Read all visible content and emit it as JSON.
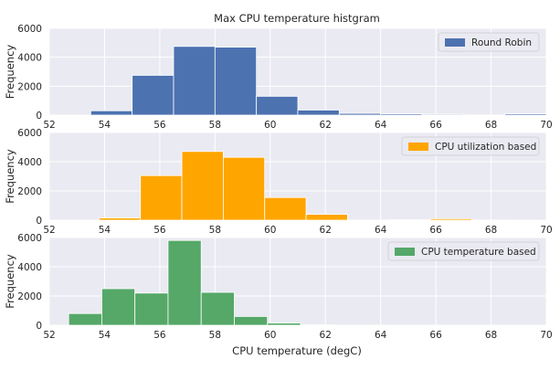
{
  "chart_data": {
    "type": "histogram",
    "title": "Max CPU temperature histgram",
    "xlabel": "CPU temperature (degC)",
    "ylabel": "Frequency",
    "xlim": [
      52,
      70
    ],
    "ylim": [
      0,
      6000
    ],
    "xticks": [
      52,
      54,
      56,
      58,
      60,
      62,
      64,
      66,
      68,
      70
    ],
    "yticks": [
      0,
      2000,
      4000,
      6000
    ],
    "grid": true,
    "legend_position": "top-right",
    "colors": {
      "background": "#eaeaf2",
      "grid": "#ffffff",
      "round_robin": "#4c72b0",
      "cpu_utilization": "#ffa500",
      "cpu_temperature": "#55a868"
    },
    "panels": [
      {
        "name": "Round Robin",
        "color": "#4c72b0",
        "show_title": true,
        "show_xlabel": false,
        "bins": [
          {
            "x0": 53.5,
            "x1": 55.0,
            "count": 300
          },
          {
            "x0": 55.0,
            "x1": 56.5,
            "count": 2750
          },
          {
            "x0": 56.5,
            "x1": 58.0,
            "count": 4750
          },
          {
            "x0": 58.0,
            "x1": 59.5,
            "count": 4700
          },
          {
            "x0": 59.5,
            "x1": 61.0,
            "count": 1300
          },
          {
            "x0": 61.0,
            "x1": 62.5,
            "count": 350
          },
          {
            "x0": 62.5,
            "x1": 64.0,
            "count": 120
          },
          {
            "x0": 64.0,
            "x1": 65.5,
            "count": 90
          },
          {
            "x0": 65.5,
            "x1": 67.0,
            "count": 60
          },
          {
            "x0": 67.0,
            "x1": 68.5,
            "count": 10
          },
          {
            "x0": 68.5,
            "x1": 70.0,
            "count": 90
          }
        ]
      },
      {
        "name": "CPU utilization based",
        "color": "#ffa500",
        "show_title": false,
        "show_xlabel": false,
        "bins": [
          {
            "x0": 53.8,
            "x1": 55.3,
            "count": 150
          },
          {
            "x0": 55.3,
            "x1": 56.8,
            "count": 3050
          },
          {
            "x0": 56.8,
            "x1": 58.3,
            "count": 4700
          },
          {
            "x0": 58.3,
            "x1": 59.8,
            "count": 4300
          },
          {
            "x0": 59.8,
            "x1": 61.3,
            "count": 1550
          },
          {
            "x0": 61.3,
            "x1": 62.8,
            "count": 400
          },
          {
            "x0": 62.8,
            "x1": 64.3,
            "count": 10
          },
          {
            "x0": 64.3,
            "x1": 65.8,
            "count": 30
          },
          {
            "x0": 65.8,
            "x1": 67.3,
            "count": 100
          },
          {
            "x0": 67.3,
            "x1": 68.8,
            "count": 10
          }
        ]
      },
      {
        "name": "CPU temperature based",
        "color": "#55a868",
        "show_title": false,
        "show_xlabel": true,
        "bins": [
          {
            "x0": 52.7,
            "x1": 53.9,
            "count": 800
          },
          {
            "x0": 53.9,
            "x1": 55.1,
            "count": 2500
          },
          {
            "x0": 55.1,
            "x1": 56.3,
            "count": 2200
          },
          {
            "x0": 56.3,
            "x1": 57.5,
            "count": 5800
          },
          {
            "x0": 57.5,
            "x1": 58.7,
            "count": 2250
          },
          {
            "x0": 58.7,
            "x1": 59.9,
            "count": 600
          },
          {
            "x0": 59.9,
            "x1": 61.1,
            "count": 150
          },
          {
            "x0": 61.1,
            "x1": 62.3,
            "count": 20
          }
        ]
      }
    ]
  }
}
